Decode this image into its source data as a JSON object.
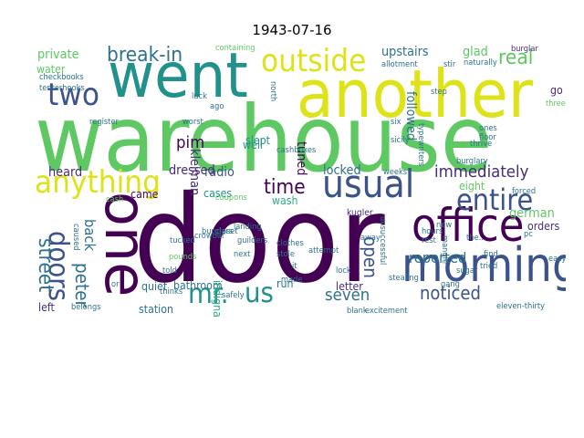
{
  "title": "1943-07-16",
  "colors": {
    "d": "#440154",
    "p": "#472c7a",
    "i": "#3b528b",
    "b": "#2c728e",
    "t": "#21918c",
    "g": "#28ae80",
    "l": "#5ec962",
    "y": "#addc30",
    "f": "#dde318",
    "k": "#c8e020"
  },
  "words": [
    [
      "warehouse",
      "l",
      0
    ],
    [
      "door",
      "d",
      0
    ],
    [
      "another",
      "f",
      0
    ],
    [
      "went",
      "t",
      0
    ],
    [
      "one",
      "d",
      1
    ],
    [
      "morning",
      "i",
      0
    ],
    [
      "office",
      "d",
      0
    ],
    [
      "outside",
      "f",
      0
    ],
    [
      "usual",
      "i",
      0
    ],
    [
      "two",
      "i",
      0
    ],
    [
      "anything",
      "f",
      0
    ],
    [
      "mr.",
      "t",
      0
    ],
    [
      "us",
      "t",
      0
    ],
    [
      "entire",
      "i",
      0
    ],
    [
      "break-in",
      "b",
      0
    ],
    [
      "real",
      "l",
      0
    ],
    [
      "noticed",
      "i",
      0
    ],
    [
      "doors",
      "i",
      1
    ],
    [
      "immediately",
      "p",
      0
    ],
    [
      "time",
      "d",
      0
    ],
    [
      "seven",
      "b",
      0
    ],
    [
      "street",
      "b",
      1
    ],
    [
      "peter",
      "b",
      1
    ],
    [
      "open",
      "i",
      1
    ],
    [
      "reported",
      "b",
      0
    ],
    [
      "upstairs",
      "b",
      0
    ],
    [
      "pim",
      "d",
      0
    ],
    [
      "locked",
      "b",
      0
    ],
    [
      "followed",
      "b",
      1
    ],
    [
      "german",
      "l",
      0
    ],
    [
      "private",
      "l",
      0
    ],
    [
      "radio",
      "i",
      0
    ],
    [
      "tuned",
      "d",
      1
    ],
    [
      "glad",
      "l",
      0
    ],
    [
      "back",
      "b",
      1
    ],
    [
      "dressed",
      "p",
      0
    ],
    [
      "heard",
      "p",
      0
    ],
    [
      "water",
      "l",
      0
    ],
    [
      "eight",
      "l",
      0
    ],
    [
      "orders",
      "p",
      0
    ],
    [
      "slept",
      "t",
      0
    ],
    [
      "cases",
      "t",
      0
    ],
    [
      "came",
      "d",
      0
    ],
    [
      "well",
      "t",
      0
    ],
    [
      "wash",
      "g",
      0
    ],
    [
      "kleiman",
      "p",
      1
    ],
    [
      "bathroom",
      "b",
      0
    ],
    [
      "station",
      "b",
      0
    ],
    [
      "letter",
      "p",
      0
    ],
    [
      "run",
      "b",
      0
    ],
    [
      "quiet",
      "b",
      0
    ],
    [
      "left",
      "p",
      0
    ],
    [
      "indignant",
      "g",
      1
    ],
    [
      "go",
      "p",
      0
    ],
    [
      "kugler",
      "p",
      0
    ],
    [
      "burglar",
      "p",
      0
    ],
    [
      "allotment",
      "b",
      0
    ],
    [
      "naturally",
      "b",
      0
    ],
    [
      "stir",
      "b",
      0
    ],
    [
      "step",
      "b",
      0
    ],
    [
      "sicily",
      "b",
      0
    ],
    [
      "six",
      "b",
      0
    ],
    [
      "register",
      "b",
      0
    ],
    [
      "worst",
      "b",
      0
    ],
    [
      "luck",
      "b",
      0
    ],
    [
      "checkbooks",
      "b",
      0
    ],
    [
      "tenterhooks",
      "b",
      0
    ],
    [
      "containing",
      "l",
      0
    ],
    [
      "crowbar",
      "b",
      0
    ],
    [
      "burglars",
      "b",
      0
    ],
    [
      "coupons",
      "l",
      0
    ],
    [
      "cashboxes",
      "b",
      0
    ],
    [
      "weeks",
      "b",
      0
    ],
    [
      "burglary",
      "b",
      0
    ],
    [
      "thrive",
      "b",
      0
    ],
    [
      "forced",
      "b",
      0
    ],
    [
      "floor",
      "b",
      0
    ],
    [
      "find",
      "b",
      0
    ],
    [
      "ones",
      "b",
      0
    ],
    [
      "closet",
      "b",
      0
    ],
    [
      "landing",
      "b",
      0
    ],
    [
      "tucked",
      "b",
      0
    ],
    [
      "guilders",
      "b",
      0
    ],
    [
      "clothes",
      "b",
      0
    ],
    [
      "stole",
      "b",
      0
    ],
    [
      "pounds",
      "l",
      0
    ],
    [
      "next",
      "b",
      0
    ],
    [
      "told",
      "b",
      0
    ],
    [
      "stealing",
      "b",
      0
    ],
    [
      "blank",
      "b",
      0
    ],
    [
      "excitement",
      "b",
      0
    ],
    [
      "eleven-thirty",
      "b",
      0
    ],
    [
      "thinks",
      "b",
      0
    ],
    [
      "safely",
      "b",
      0
    ],
    [
      "belongs",
      "b",
      0
    ],
    [
      "gang",
      "b",
      0
    ],
    [
      "tried",
      "b",
      0
    ],
    [
      "easy",
      "b",
      0
    ],
    [
      "cash",
      "l",
      0
    ],
    [
      "made",
      "b",
      0
    ],
    [
      "attempt",
      "b",
      0
    ],
    [
      "new",
      "b",
      0
    ],
    [
      "away",
      "b",
      0
    ],
    [
      "ago",
      "b",
      0
    ],
    [
      "the...",
      "b",
      0
    ],
    [
      "pc",
      "b",
      0
    ],
    [
      "unsuccessful",
      "b",
      1
    ],
    [
      "typewriters",
      "b",
      1
    ],
    [
      "three",
      "l",
      0
    ],
    [
      "north",
      "b",
      1
    ],
    [
      "mangle",
      "b",
      1
    ],
    [
      "caused",
      "b",
      1
    ],
    [
      "hours",
      "b",
      0
    ],
    [
      "rest",
      "b",
      0
    ],
    [
      "sugar",
      "b",
      0
    ],
    [
      "or",
      "b",
      0
    ],
    [
      "it",
      "b",
      0
    ],
    [
      "lock",
      "b",
      0
    ]
  ]
}
